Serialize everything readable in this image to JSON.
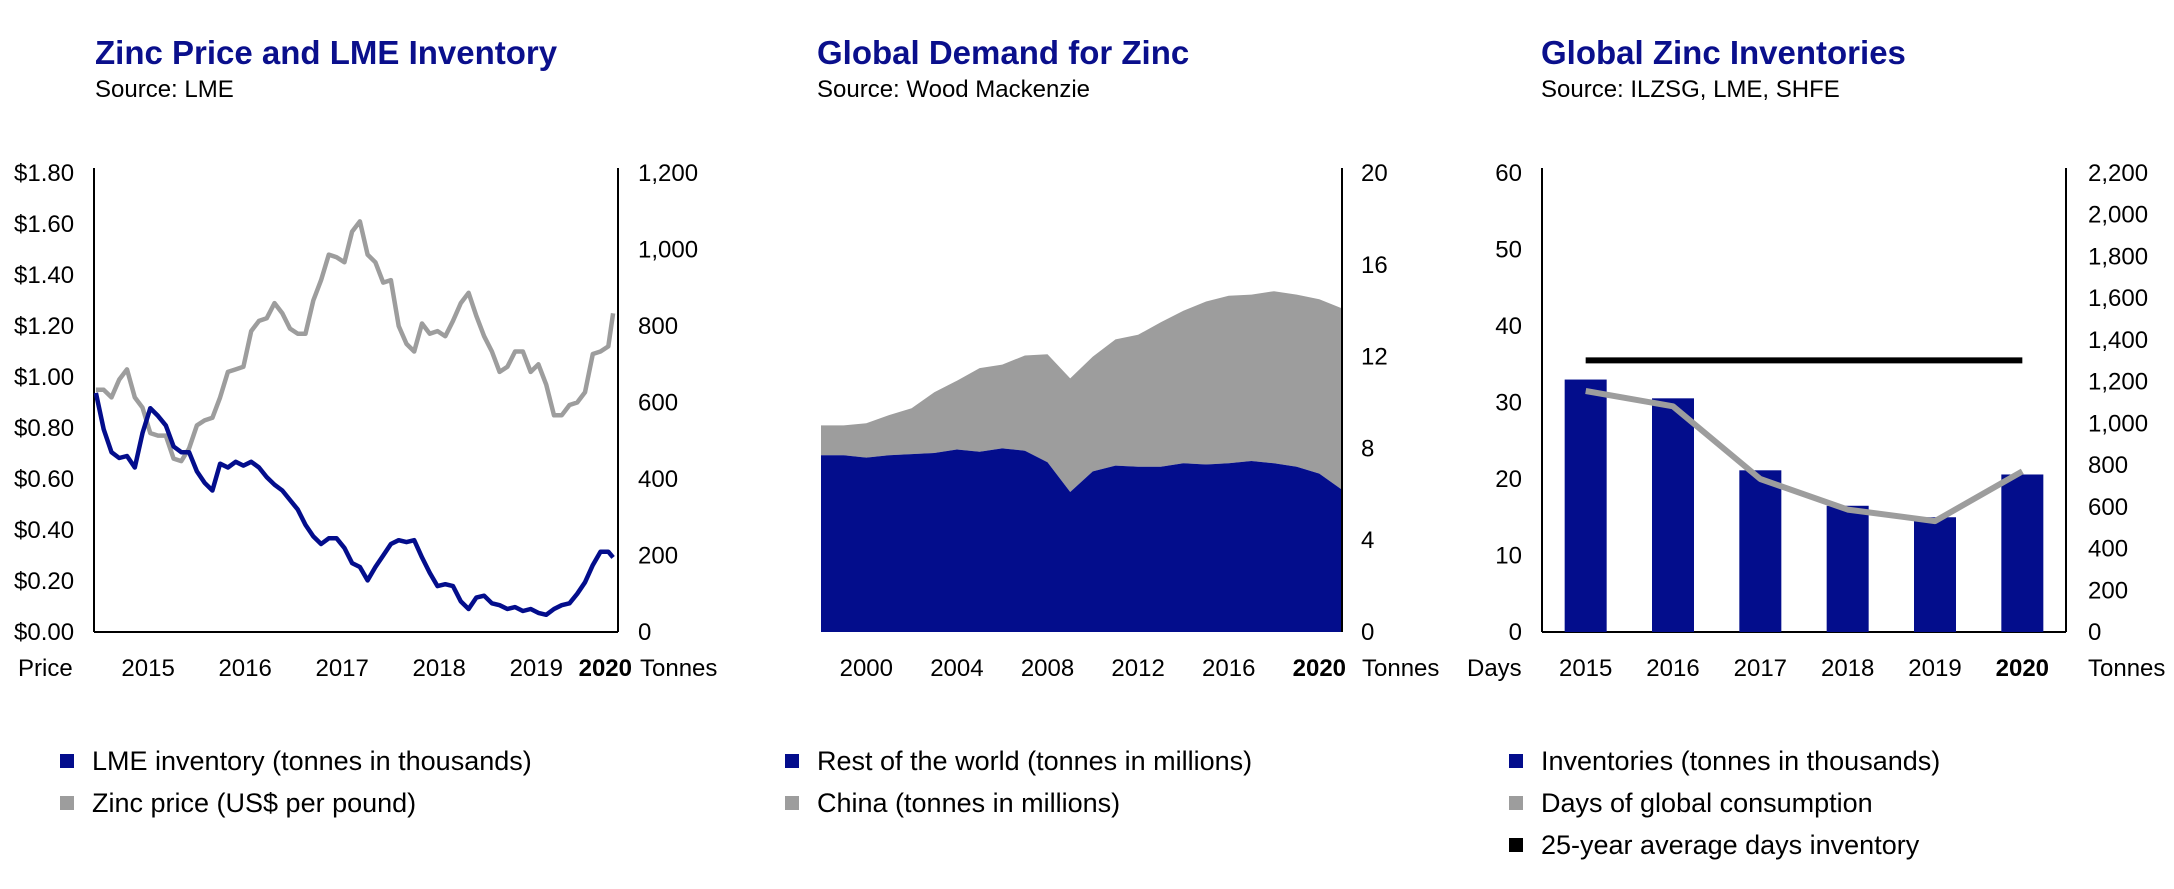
{
  "colors": {
    "navy": "#030d8c",
    "gray": "#9d9d9d",
    "black": "#000000",
    "title": "#0a0f8c"
  },
  "panels": [
    {
      "title": "Zinc Price and LME Inventory",
      "source": "Source: LME",
      "legend": [
        {
          "label": "LME inventory (tonnes in thousands)",
          "color": "#030d8c"
        },
        {
          "label": "Zinc price (US$ per pound)",
          "color": "#9d9d9d"
        }
      ]
    },
    {
      "title": "Global Demand for Zinc",
      "source": "Source: Wood Mackenzie",
      "legend": [
        {
          "label": "Rest of the world (tonnes in millions)",
          "color": "#030d8c"
        },
        {
          "label": "China (tonnes in millions)",
          "color": "#9d9d9d"
        }
      ]
    },
    {
      "title": "Global Zinc Inventories",
      "source": "Source: ILZSG, LME, SHFE",
      "legend": [
        {
          "label": "Inventories (tonnes in thousands)",
          "color": "#030d8c"
        },
        {
          "label": "Days of global consumption",
          "color": "#9d9d9d"
        },
        {
          "label": "25-year average days inventory",
          "color": "#000000"
        }
      ]
    }
  ],
  "chart_data": [
    {
      "type": "line",
      "title": "Zinc Price and LME Inventory",
      "left_axis": {
        "label": "Price",
        "ticks": [
          "$0.00",
          "$0.20",
          "$0.40",
          "$0.60",
          "$0.80",
          "$1.00",
          "$1.20",
          "$1.40",
          "$1.60",
          "$1.80"
        ],
        "ylim": [
          0,
          1.8
        ]
      },
      "right_axis": {
        "label": "Tonnes",
        "ticks": [
          "0",
          "200",
          "400",
          "600",
          "800",
          "1,000",
          "1,200"
        ],
        "ylim": [
          0,
          1200
        ]
      },
      "x_ticks": [
        "2015",
        "2016",
        "2017",
        "2018",
        "2019",
        "2020"
      ],
      "x_range": [
        2014.7,
        2020.1
      ],
      "series": [
        {
          "name": "LME inventory (tonnes in thousands)",
          "axis": "right",
          "color": "#030d8c",
          "x": [
            2014.72,
            2014.8,
            2014.88,
            2014.96,
            2015.04,
            2015.12,
            2015.2,
            2015.28,
            2015.36,
            2015.44,
            2015.52,
            2015.6,
            2015.68,
            2015.76,
            2015.84,
            2015.92,
            2016.0,
            2016.08,
            2016.16,
            2016.24,
            2016.32,
            2016.4,
            2016.48,
            2016.56,
            2016.64,
            2016.72,
            2016.8,
            2016.88,
            2016.96,
            2017.04,
            2017.12,
            2017.2,
            2017.28,
            2017.36,
            2017.44,
            2017.52,
            2017.6,
            2017.68,
            2017.76,
            2017.84,
            2017.92,
            2018.0,
            2018.08,
            2018.16,
            2018.24,
            2018.32,
            2018.4,
            2018.48,
            2018.56,
            2018.64,
            2018.72,
            2018.8,
            2018.88,
            2018.96,
            2019.04,
            2019.12,
            2019.2,
            2019.28,
            2019.36,
            2019.44,
            2019.52,
            2019.6,
            2019.68,
            2019.76,
            2019.84,
            2019.92,
            2020.0,
            2020.05
          ],
          "values": [
            625,
            530,
            470,
            455,
            460,
            430,
            520,
            585,
            565,
            540,
            485,
            470,
            470,
            420,
            390,
            370,
            440,
            430,
            445,
            435,
            445,
            430,
            405,
            385,
            370,
            345,
            320,
            280,
            250,
            230,
            245,
            245,
            220,
            180,
            170,
            135,
            170,
            200,
            230,
            240,
            235,
            240,
            195,
            155,
            120,
            125,
            120,
            80,
            60,
            90,
            95,
            75,
            70,
            60,
            65,
            55,
            60,
            50,
            45,
            60,
            70,
            75,
            100,
            130,
            175,
            210,
            210,
            195
          ]
        },
        {
          "name": "Zinc price (US$ per pound)",
          "axis": "left",
          "color": "#9d9d9d",
          "x": [
            2014.72,
            2014.8,
            2014.88,
            2014.96,
            2015.04,
            2015.12,
            2015.2,
            2015.28,
            2015.36,
            2015.44,
            2015.52,
            2015.6,
            2015.68,
            2015.76,
            2015.84,
            2015.92,
            2016.0,
            2016.08,
            2016.16,
            2016.24,
            2016.32,
            2016.4,
            2016.48,
            2016.56,
            2016.64,
            2016.72,
            2016.8,
            2016.88,
            2016.96,
            2017.04,
            2017.12,
            2017.2,
            2017.28,
            2017.36,
            2017.44,
            2017.52,
            2017.6,
            2017.68,
            2017.76,
            2017.84,
            2017.92,
            2018.0,
            2018.08,
            2018.16,
            2018.24,
            2018.32,
            2018.4,
            2018.48,
            2018.56,
            2018.64,
            2018.72,
            2018.8,
            2018.88,
            2018.96,
            2019.04,
            2019.12,
            2019.2,
            2019.28,
            2019.36,
            2019.44,
            2019.52,
            2019.6,
            2019.68,
            2019.76,
            2019.84,
            2019.92,
            2020.0,
            2020.05
          ],
          "values": [
            0.95,
            0.95,
            0.92,
            0.99,
            1.03,
            0.92,
            0.88,
            0.78,
            0.77,
            0.77,
            0.68,
            0.67,
            0.72,
            0.81,
            0.83,
            0.84,
            0.92,
            1.02,
            1.03,
            1.04,
            1.18,
            1.22,
            1.23,
            1.29,
            1.25,
            1.19,
            1.17,
            1.17,
            1.3,
            1.38,
            1.48,
            1.47,
            1.45,
            1.57,
            1.61,
            1.48,
            1.45,
            1.37,
            1.38,
            1.2,
            1.13,
            1.1,
            1.21,
            1.17,
            1.18,
            1.16,
            1.22,
            1.29,
            1.33,
            1.24,
            1.16,
            1.1,
            1.02,
            1.04,
            1.1,
            1.1,
            1.02,
            1.05,
            0.97,
            0.85,
            0.85,
            0.89,
            0.9,
            0.94,
            1.09,
            1.1,
            1.12,
            1.25
          ]
        }
      ]
    },
    {
      "type": "area",
      "title": "Global Demand for Zinc",
      "right_axis": {
        "label": "Tonnes",
        "ticks": [
          "0",
          "4",
          "8",
          "12",
          "16",
          "20"
        ],
        "ylim": [
          0,
          20
        ]
      },
      "x_ticks": [
        "2000",
        "2004",
        "2008",
        "2012",
        "2016",
        "2020"
      ],
      "x": [
        1998,
        1999,
        2000,
        2001,
        2002,
        2003,
        2004,
        2005,
        2006,
        2007,
        2008,
        2009,
        2010,
        2011,
        2012,
        2013,
        2014,
        2015,
        2016,
        2017,
        2018,
        2019,
        2020,
        2021
      ],
      "series": [
        {
          "name": "Rest of the world (tonnes in millions)",
          "color": "#030d8c",
          "values": [
            7.7,
            7.7,
            7.6,
            7.7,
            7.75,
            7.8,
            7.95,
            7.85,
            8.0,
            7.9,
            7.4,
            6.1,
            7.0,
            7.25,
            7.2,
            7.2,
            7.35,
            7.3,
            7.35,
            7.45,
            7.35,
            7.2,
            6.9,
            6.2
          ]
        },
        {
          "name": "China (tonnes in millions)",
          "color": "#9d9d9d",
          "values": [
            1.3,
            1.3,
            1.5,
            1.75,
            2.0,
            2.65,
            3.0,
            3.65,
            3.65,
            4.15,
            4.7,
            4.95,
            5.0,
            5.5,
            5.75,
            6.3,
            6.65,
            7.1,
            7.3,
            7.25,
            7.5,
            7.5,
            7.6,
            7.9
          ]
        }
      ]
    },
    {
      "type": "bar",
      "title": "Global Zinc Inventories",
      "left_axis": {
        "label": "Days",
        "ticks": [
          "0",
          "10",
          "20",
          "30",
          "40",
          "50",
          "60"
        ],
        "ylim": [
          0,
          60
        ]
      },
      "right_axis": {
        "label": "Tonnes",
        "ticks": [
          "0",
          "200",
          "400",
          "600",
          "800",
          "1,000",
          "1,200",
          "1,400",
          "1,600",
          "1,800",
          "2,000",
          "2,200"
        ],
        "ylim": [
          0,
          2200
        ]
      },
      "categories": [
        "2015",
        "2016",
        "2017",
        "2018",
        "2019",
        "2020"
      ],
      "series": [
        {
          "name": "Inventories (tonnes in thousands)",
          "axis": "right",
          "color": "#030d8c",
          "values": [
            1210,
            1120,
            775,
            605,
            550,
            755
          ]
        },
        {
          "name": "Days of global consumption",
          "axis": "left",
          "color": "#9d9d9d",
          "values": [
            31.5,
            29.5,
            20.0,
            16.0,
            14.5,
            21.0
          ]
        },
        {
          "name": "25-year average days inventory",
          "axis": "left",
          "color": "#000000",
          "values": [
            35.5,
            35.5,
            35.5,
            35.5,
            35.5,
            35.5
          ]
        }
      ]
    }
  ]
}
